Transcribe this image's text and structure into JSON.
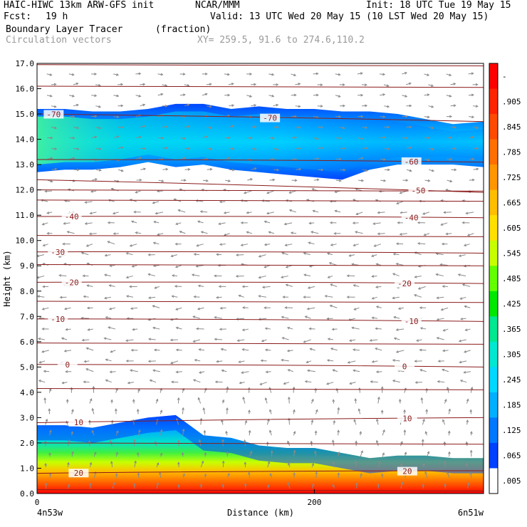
{
  "header": {
    "model": "HAIC-HIWC 13km ARW-GFS init",
    "org": "NCAR/MMM",
    "init": "Init: 18 UTC Tue 19 May 15",
    "fcst_label": "Fcst:",
    "fcst_value": "19 h",
    "valid": "Valid: 13 UTC Wed 20 May 15 (10 LST Wed 20 May 15)",
    "field_name": "Boundary Layer Tracer",
    "field_units": "(fraction)",
    "vector_label": "Circulation vectors",
    "xy_range": "XY= 259.5, 91.6 to 274.6,110.2"
  },
  "chart_data": {
    "type": "heatmap",
    "xlabel": "Distance (km)",
    "ylabel": "Height (km)",
    "x_ticks": [
      "0",
      "200"
    ],
    "x_tick_values": [
      0,
      200
    ],
    "xlim": [
      0,
      322
    ],
    "ylim": [
      0,
      17
    ],
    "y_ticks": [
      "0.0",
      "1.0",
      "2.0",
      "3.0",
      "4.0",
      "5.0",
      "6.0",
      "7.0",
      "8.0",
      "9.0",
      "10.0",
      "11.0",
      "12.0",
      "13.0",
      "14.0",
      "15.0",
      "16.0",
      "17.0"
    ],
    "endpoint_left": "4n53w",
    "endpoint_right": "6n51w",
    "colorbar_labels": [
      "-",
      ".905",
      ".845",
      ".785",
      ".725",
      ".665",
      ".605",
      ".545",
      ".485",
      ".425",
      ".365",
      ".305",
      ".245",
      ".185",
      ".125",
      ".065",
      ".005"
    ],
    "colorbar_colors": [
      "#ff0000",
      "#ff2400",
      "#ff4a00",
      "#ff7000",
      "#ff9600",
      "#ffbe00",
      "#ffe000",
      "#c8ff00",
      "#64ff00",
      "#00e800",
      "#00e890",
      "#00e8d0",
      "#00d8ff",
      "#00b0ff",
      "#0078ff",
      "#0040ff",
      "#ffffff"
    ],
    "temperature_contours": [
      {
        "label": "-70",
        "y_left": 15.0,
        "y_right": 14.7,
        "label_x": [
          12,
          168
        ]
      },
      {
        "label": "-60",
        "y_left": 13.2,
        "y_right": 13.1,
        "label_x": [
          270
        ]
      },
      {
        "label": "-50",
        "y_left": 12.4,
        "y_right": 11.9,
        "label_x": [
          275
        ]
      },
      {
        "label": "-40",
        "y_left": 10.95,
        "y_right": 10.9,
        "label_x": [
          25,
          270
        ]
      },
      {
        "label": "-30",
        "y_left": 9.55,
        "y_right": 9.5,
        "label_x": [
          15
        ]
      },
      {
        "label": "-20",
        "y_left": 8.35,
        "y_right": 8.3,
        "label_x": [
          25,
          265
        ]
      },
      {
        "label": "-10",
        "y_left": 6.9,
        "y_right": 6.8,
        "label_x": [
          15,
          270
        ]
      },
      {
        "label": "0",
        "y_left": 5.1,
        "y_right": 5.0,
        "label_x": [
          22,
          265
        ]
      },
      {
        "label": "10",
        "y_left": 2.8,
        "y_right": 3.0,
        "label_x": [
          30,
          267
        ]
      },
      {
        "label": "20",
        "y_left": 0.8,
        "y_right": 0.9,
        "label_x": [
          30,
          267
        ]
      }
    ],
    "tracer_layers": [
      {
        "name": "boundary-layer",
        "x": [
          0,
          20,
          40,
          60,
          80,
          100,
          120,
          140,
          160,
          180,
          200,
          220,
          240,
          260,
          280,
          300,
          322
        ],
        "top": [
          2.7,
          2.7,
          2.6,
          2.8,
          3.0,
          3.1,
          2.3,
          2.2,
          1.9,
          1.8,
          1.8,
          1.6,
          1.4,
          1.5,
          1.5,
          1.4,
          1.4
        ]
      },
      {
        "name": "upper-layer",
        "x": [
          0,
          20,
          40,
          60,
          80,
          100,
          120,
          140,
          160,
          180,
          200,
          220,
          240,
          260,
          280,
          300,
          322
        ],
        "top": [
          15.2,
          15.2,
          15.1,
          15.1,
          15.2,
          15.4,
          15.4,
          15.2,
          15.3,
          15.2,
          15.2,
          15.1,
          15.1,
          15.0,
          14.8,
          14.6,
          14.7
        ],
        "bottom": [
          12.7,
          12.8,
          12.8,
          12.9,
          13.1,
          12.9,
          13.0,
          12.8,
          12.7,
          12.6,
          12.5,
          12.4,
          12.8,
          13.0,
          13.0,
          13.0,
          12.9
        ]
      }
    ]
  }
}
